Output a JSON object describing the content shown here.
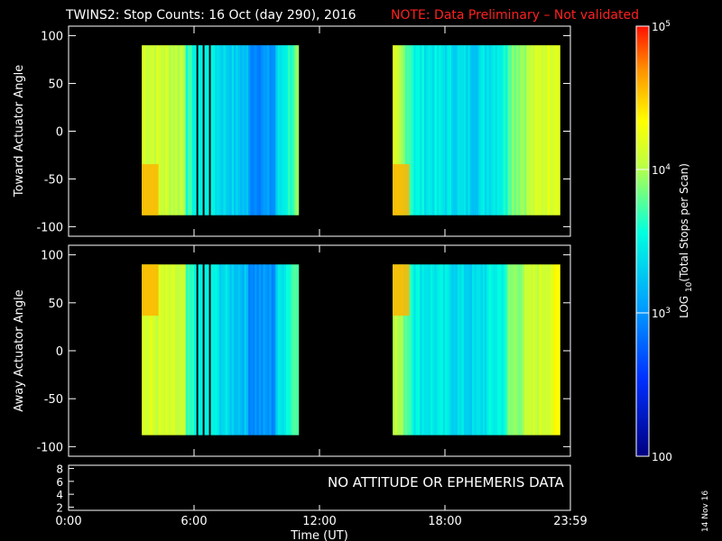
{
  "title": {
    "main": "TWINS2: Stop Counts: 16 Oct (day 290), 2016",
    "note": "NOTE: Data Preliminary – Not validated"
  },
  "panels": {
    "toward": {
      "ylabel": "Toward Actuator Angle"
    },
    "away": {
      "ylabel": "Away Actuator Angle"
    },
    "attitude": {
      "message": "NO ATTITUDE OR EPHEMERIS DATA"
    }
  },
  "xaxis": {
    "label": "Time (UT)",
    "tick_labels": [
      "0:00",
      "6:00",
      "12:00",
      "18:00",
      "23:59"
    ]
  },
  "colorbar": {
    "label": "LOG10(Total Stops per Scan)",
    "tick_labels": [
      "100",
      "10^3",
      "10^4",
      "10^5"
    ]
  },
  "datestamp": "14 Nov 16",
  "chart_data": [
    {
      "type": "heatmap",
      "panel": "Toward Actuator Angle",
      "x_unit": "hours UT",
      "xlim": [
        0,
        24
      ],
      "ylim": [
        -110,
        110
      ],
      "yticks": [
        100,
        50,
        0,
        -50,
        -100
      ],
      "xticks": [
        0,
        6,
        12,
        18,
        24
      ],
      "data_y_range": [
        -88,
        90
      ],
      "data_time_blocks": [
        [
          3.5,
          11.0
        ],
        [
          15.5,
          23.5
        ]
      ],
      "scale": "log",
      "zlim": [
        100,
        100000
      ]
    },
    {
      "type": "heatmap",
      "panel": "Away Actuator Angle",
      "x_unit": "hours UT",
      "xlim": [
        0,
        24
      ],
      "ylim": [
        -110,
        110
      ],
      "yticks": [
        100,
        50,
        0,
        -50,
        -100
      ],
      "xticks": [
        0,
        6,
        12,
        18,
        24
      ],
      "data_y_range": [
        -88,
        90
      ],
      "data_time_blocks": [
        [
          3.5,
          11.0
        ],
        [
          15.5,
          23.5
        ]
      ],
      "scale": "log",
      "zlim": [
        100,
        100000
      ]
    },
    {
      "type": "line",
      "panel": "attitude",
      "ylim": [
        1.5,
        8.5
      ],
      "yticks": [
        8,
        6,
        4,
        2
      ],
      "series": []
    }
  ]
}
